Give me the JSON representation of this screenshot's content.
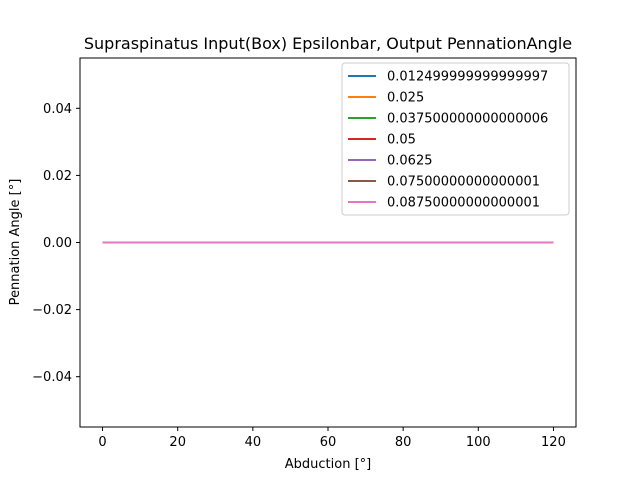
{
  "chart_data": {
    "type": "line",
    "title": "Supraspinatus Input(Box) Epsilonbar, Output PennationAngle",
    "xlabel": "Abduction [°]",
    "ylabel": "Pennation Angle [°]",
    "xlim": [
      -6,
      126
    ],
    "ylim": [
      -0.055,
      0.055
    ],
    "xticks": [
      0,
      20,
      40,
      60,
      80,
      100,
      120
    ],
    "xtick_labels": [
      "0",
      "20",
      "40",
      "60",
      "80",
      "100",
      "120"
    ],
    "yticks": [
      -0.04,
      -0.02,
      0.0,
      0.02,
      0.04
    ],
    "ytick_labels": [
      "−0.04",
      "−0.02",
      "0.00",
      "0.02",
      "0.04"
    ],
    "grid": false,
    "legend_position": "top-right",
    "x": [
      0,
      120
    ],
    "series": [
      {
        "name": "0.012499999999999997",
        "color": "#1f77b4",
        "values": [
          0,
          0
        ]
      },
      {
        "name": "0.025",
        "color": "#ff7f0e",
        "values": [
          0,
          0
        ]
      },
      {
        "name": "0.037500000000000006",
        "color": "#2ca02c",
        "values": [
          0,
          0
        ]
      },
      {
        "name": "0.05",
        "color": "#d62728",
        "values": [
          0,
          0
        ]
      },
      {
        "name": "0.0625",
        "color": "#9467bd",
        "values": [
          0,
          0
        ]
      },
      {
        "name": "0.07500000000000001",
        "color": "#8c564b",
        "values": [
          0,
          0
        ]
      },
      {
        "name": "0.08750000000000001",
        "color": "#e377c2",
        "values": [
          0,
          0
        ]
      }
    ]
  }
}
